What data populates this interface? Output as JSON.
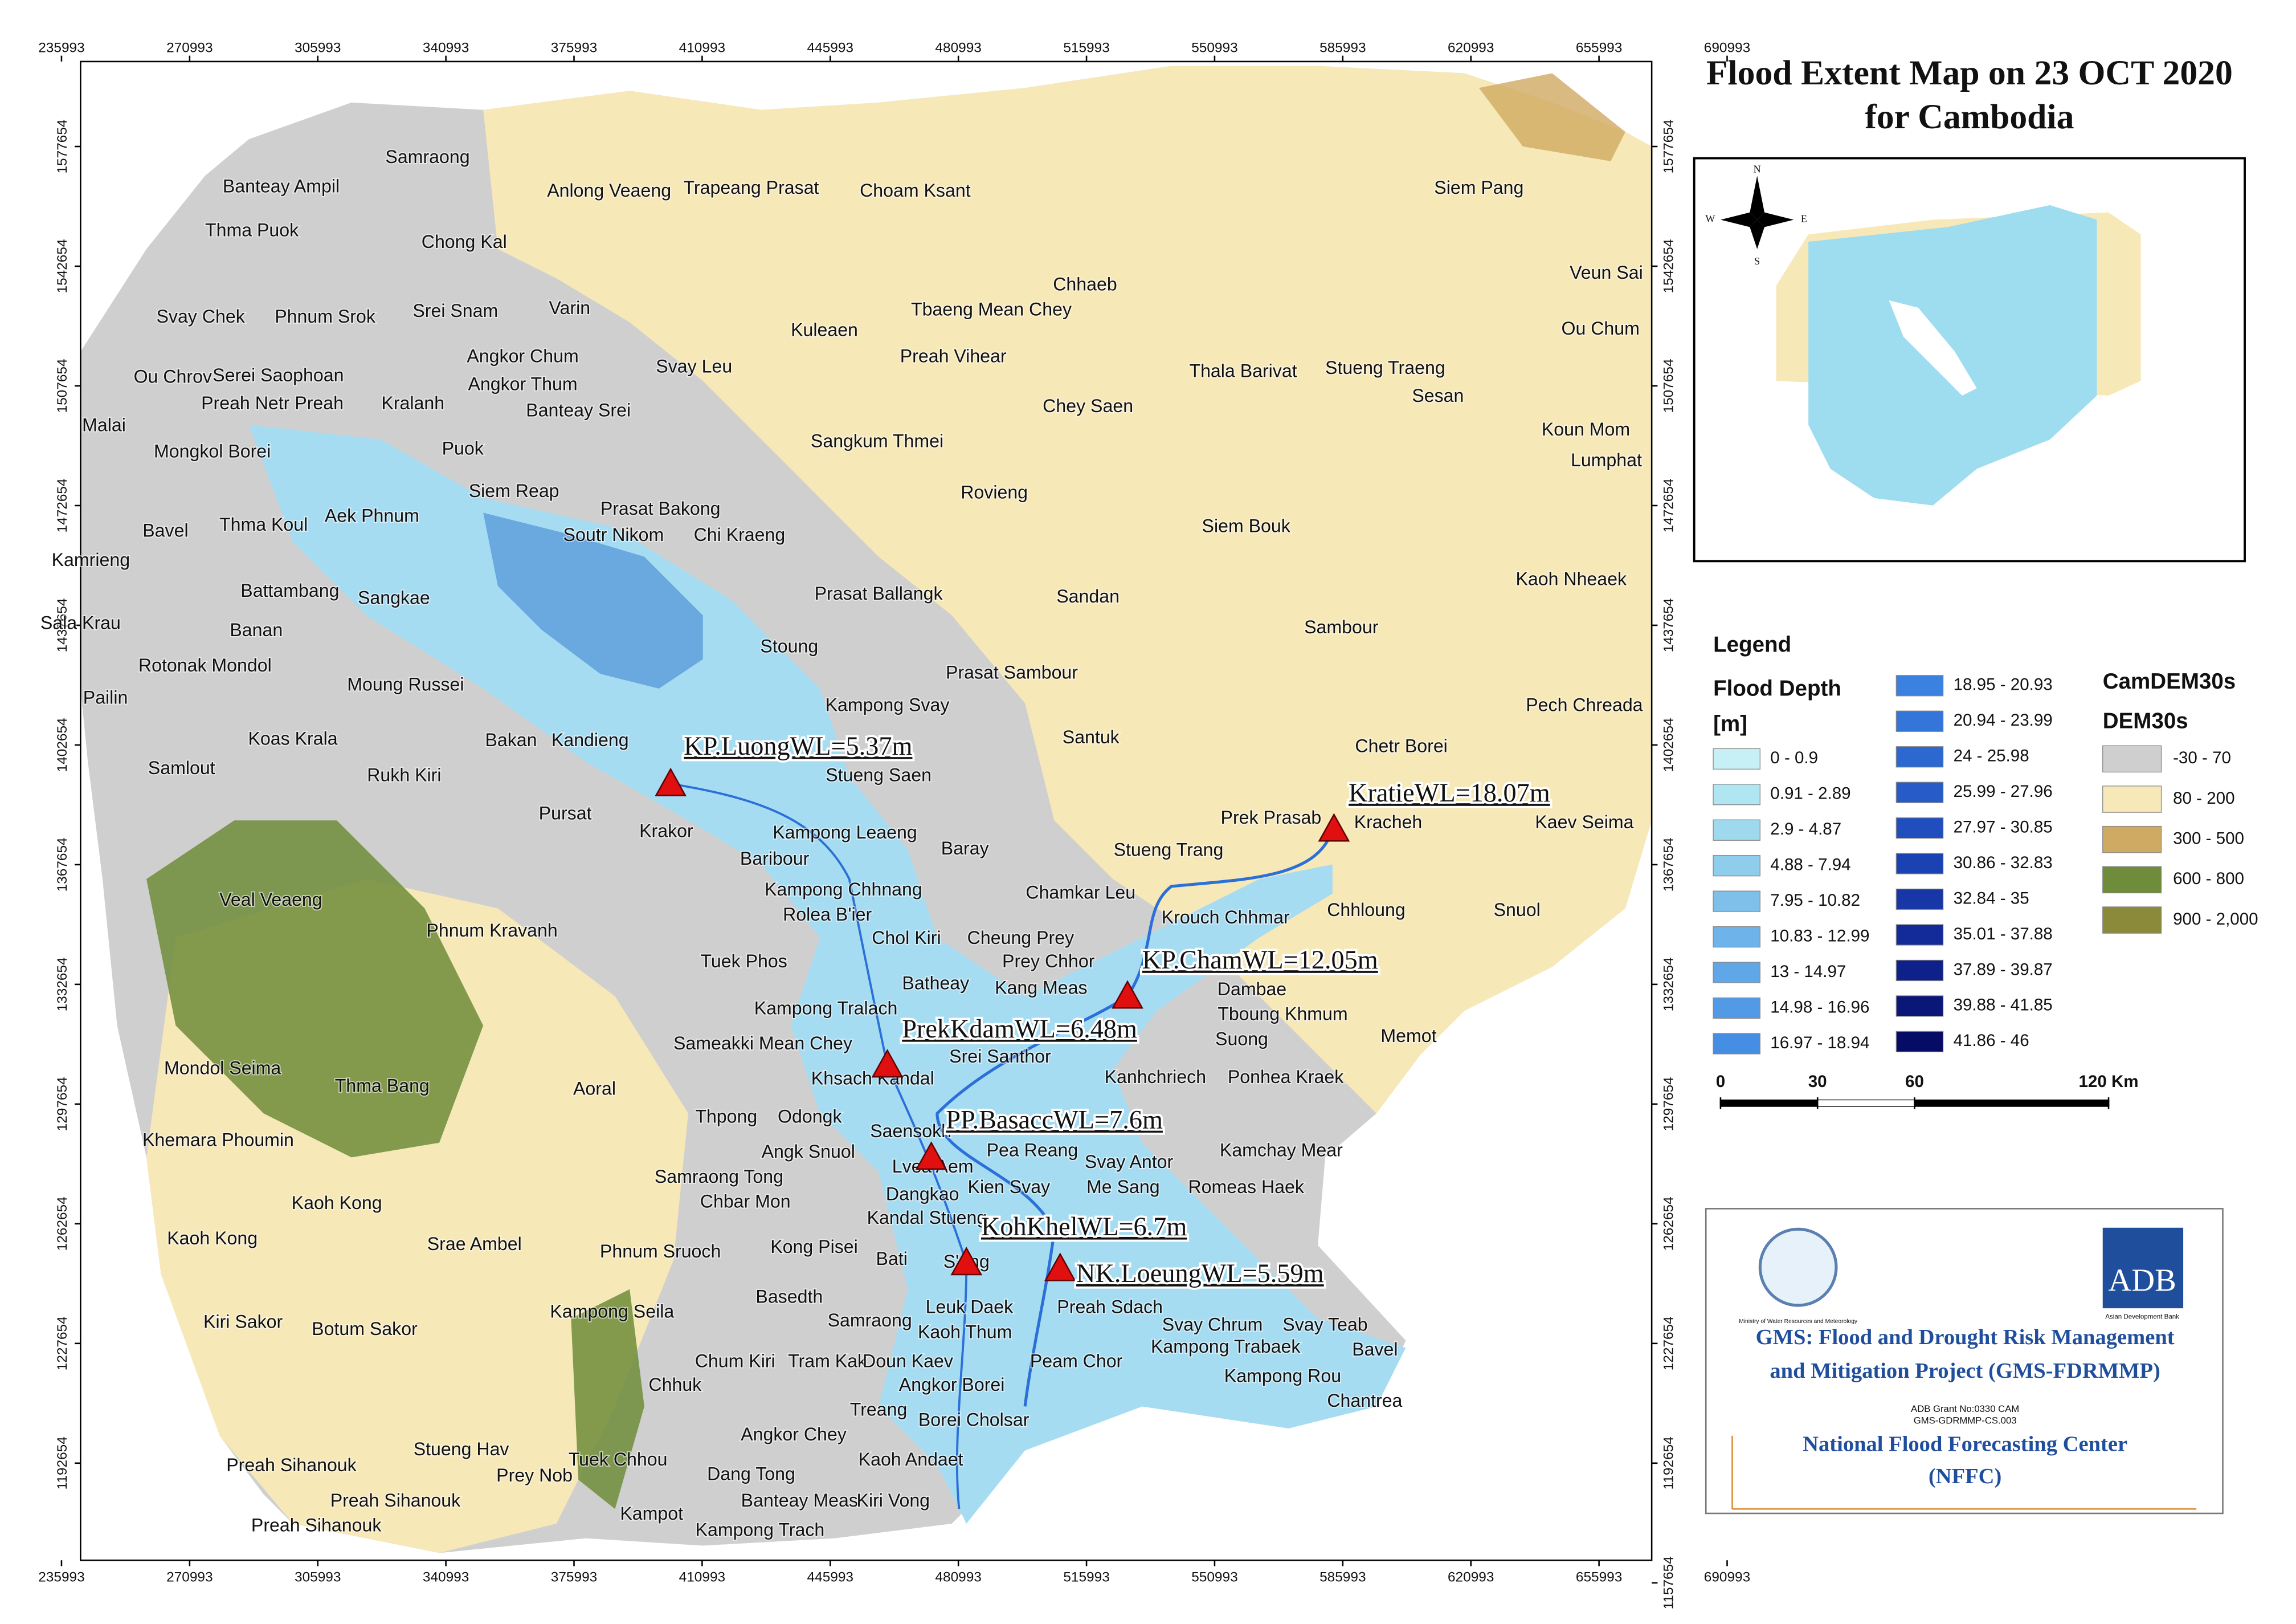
{
  "title": [
    "Flood Extent Map on 23 OCT 2020",
    "for Cambodia"
  ],
  "map": {
    "xticks": [
      235993,
      270993,
      305993,
      340993,
      375993,
      410993,
      445993,
      480993,
      515993,
      550993,
      585993,
      620993,
      655993,
      690993
    ],
    "yticks": [
      1157654,
      1192654,
      1227654,
      1262654,
      1297654,
      1332654,
      1367654,
      1402654,
      1437654,
      1472654,
      1507654,
      1542654,
      1577654
    ],
    "districts": [
      "Samraong",
      "Banteay Ampil",
      "Anlong Veaeng",
      "Trapeang Prasat",
      "Choam Ksant",
      "Siem Pang",
      "Thma Puok",
      "Chong Kal",
      "Chhaeb",
      "Veun Sai",
      "Svay Chek",
      "Phnum Srok",
      "Srei Snam",
      "Varin",
      "Tbaeng Mean Chey",
      "Kuleaen",
      "Ou Chum",
      "Angkor Chum",
      "Svay Leu",
      "Preah Vihear",
      "Thala Barivat",
      "Stueng Traeng",
      "Ou Chrov",
      "Serei Saophoan",
      "Angkor Thum",
      "Sesan",
      "Preah Netr Preah",
      "Kralanh",
      "Banteay Srei",
      "Chey Saen",
      "Malai",
      "Koun Mom",
      "Sangkum Thmei",
      "Mongkol Borei",
      "Puok",
      "Lumphat",
      "Siem Reap",
      "Rovieng",
      "Prasat Bakong",
      "Bavel",
      "Thma Koul",
      "Aek Phnum",
      "Siem Bouk",
      "Soutr Nikom",
      "Chi Kraeng",
      "Kamrieng",
      "Kaoh Nheaek",
      "Battambang",
      "Sangkae",
      "Prasat Ballangk",
      "Sandan",
      "Sala Krau",
      "Banan",
      "Sambour",
      "Stoung",
      "Rotonak Mondol",
      "Prasat Sambour",
      "Moung Russei",
      "Pailin",
      "Kampong Svay",
      "Pech Chreada",
      "Koas Krala",
      "Bakan",
      "Kandieng",
      "Santuk",
      "Chetr Borei",
      "Samlout",
      "Rukh Kiri",
      "Stueng Saen",
      "Pursat",
      "Prek Prasab",
      "Kracheh",
      "Kaev Seima",
      "Krakor",
      "Kampong Leaeng",
      "Baribour",
      "Baray",
      "Stueng Trang",
      "Kampong Chhnang",
      "Chamkar Leu",
      "Veal Veaeng",
      "Rolea B'ier",
      "Chhloung",
      "Snuol",
      "Krouch Chhmar",
      "Chol Kiri",
      "Cheung Prey",
      "Phnum Kravanh",
      "Tuek Phos",
      "Batheay",
      "Prey Chhor",
      "Kang Meas",
      "Dambae",
      "Kampong Tralach",
      "Tboung Khmum",
      "Sameakki Mean Chey",
      "Suong",
      "Memot",
      "Srei Santhor",
      "Mondol Seima",
      "Khsach Kandal",
      "Kanhchriech",
      "Ponhea Kraek",
      "Thma Bang",
      "Aoral",
      "Thpong",
      "Odongk",
      "Saensokh",
      "Khemara Phoumin",
      "Pea Reang",
      "Angk Snuol",
      "Kamchay Mear",
      "Lvea Aem",
      "Svay Antor",
      "Samraong Tong",
      "Me Sang",
      "Romeas Haek",
      "Kien Svay",
      "Chbar Mon",
      "Dangkao",
      "Kaoh Kong",
      "Kandal Stueng",
      "Kaoh Kong",
      "Srae Ambel",
      "Phnum Sruoch",
      "Kong Pisei",
      "Bati",
      "S'ang",
      "Basedth",
      "Leuk Daek",
      "Preah Sdach",
      "Kampong Seila",
      "Kiri Sakor",
      "Botum Sakor",
      "Samraong",
      "Svay Chrum",
      "Svay Teab",
      "Kaoh Thum",
      "Kampong Trabaek",
      "Bavel",
      "Chum Kiri",
      "Tram Kak",
      "Doun Kaev",
      "Peam Chor",
      "Kampong Rou",
      "Chhuk",
      "Angkor Borei",
      "Chantrea",
      "Treang",
      "Borei Cholsar",
      "Angkor Chey",
      "Stueng Hav",
      "Preah Sihanouk",
      "Tuek Chhou",
      "Kaoh Andaet",
      "Prey Nob",
      "Dang Tong",
      "Preah Sihanouk",
      "Banteay Meas",
      "Kiri Vong",
      "Kampot",
      "Preah Sihanouk",
      "Kampong Trach"
    ],
    "stations": [
      "KP.LuongWL=5.37m",
      "KratieWL=18.07m",
      "KP.ChamWL=12.05m",
      "PrekKdamWL=6.48m",
      "PP.BasaccWL=7.6m",
      "KohKhelWL=6.7m",
      "NK.LoeungWL=5.59m"
    ]
  },
  "compass": [
    "N",
    "E",
    "S",
    "W"
  ],
  "legend": {
    "title": "Legend",
    "flood_title": "Flood Depth",
    "flood_unit": "[m]",
    "flood_classes": [
      {
        "label": "0 - 0.9",
        "color": "#c6f0f6"
      },
      {
        "label": "0.91 - 2.89",
        "color": "#b0e6f1"
      },
      {
        "label": "2.9 - 4.87",
        "color": "#9ed9ee"
      },
      {
        "label": "4.88 - 7.94",
        "color": "#8ecdec"
      },
      {
        "label": "7.95 - 10.82",
        "color": "#7ec0ea"
      },
      {
        "label": "10.83 - 12.99",
        "color": "#6eb3e9"
      },
      {
        "label": "13 - 14.97",
        "color": "#60a7e8"
      },
      {
        "label": "14.98 - 16.96",
        "color": "#529ae6"
      },
      {
        "label": "16.97 - 18.94",
        "color": "#458ee4"
      },
      {
        "label": "18.95 - 20.93",
        "color": "#3b82e0"
      },
      {
        "label": "20.94 - 23.99",
        "color": "#3375d8"
      },
      {
        "label": "24 - 25.98",
        "color": "#2c68d0"
      },
      {
        "label": "25.99 - 27.96",
        "color": "#265bc8"
      },
      {
        "label": "27.97 - 30.85",
        "color": "#204ebe"
      },
      {
        "label": "30.86 - 32.83",
        "color": "#1b42b2"
      },
      {
        "label": "32.84 - 35",
        "color": "#1737a6"
      },
      {
        "label": "35.01 - 37.88",
        "color": "#122b98"
      },
      {
        "label": "37.89 - 39.87",
        "color": "#0e2089"
      },
      {
        "label": "39.88 - 41.85",
        "color": "#0a1678"
      },
      {
        "label": "41.86 - 46",
        "color": "#060c66"
      }
    ],
    "dem_title": [
      "CamDEM30s",
      "DEM30s"
    ],
    "dem_classes": [
      {
        "label": "-30 - 70",
        "color": "#cfcfcf"
      },
      {
        "label": "80 - 200",
        "color": "#f7e8b8"
      },
      {
        "label": "300 - 500",
        "color": "#cfaa62"
      },
      {
        "label": "600 - 800",
        "color": "#6f8c3a"
      },
      {
        "label": "900 - 2,000",
        "color": "#8a8a3a"
      }
    ]
  },
  "scale_bar": {
    "ticks": [
      0,
      30,
      60,
      {
        "value": 120,
        "label": "120 Km"
      }
    ]
  },
  "project": {
    "ministry": "Ministry of Water Resources and Meteorology",
    "adb": "ADB",
    "adb_name": "Asian Development Bank",
    "title": [
      "GMS: Flood and Drought Risk Management",
      "and Mitigation Project (GMS-FDRMMP)"
    ],
    "grant": [
      "ADB Grant No:0330 CAM",
      "GMS-GDRMMP-CS.003"
    ],
    "center": [
      "National Flood Forecasting Center",
      "(NFFC)"
    ]
  }
}
